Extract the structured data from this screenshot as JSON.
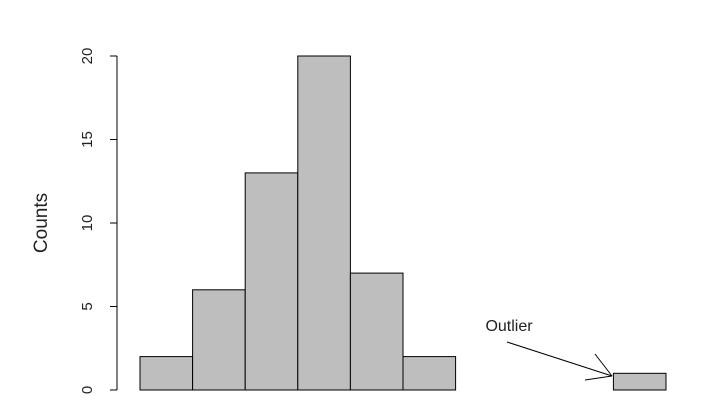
{
  "chart_data": {
    "type": "bar",
    "ylabel": "Counts",
    "ylim": [
      0,
      20
    ],
    "yticks": [
      0,
      5,
      10,
      15,
      20
    ],
    "grid": false,
    "bar_fill": "#bebebe",
    "bar_stroke": "#000000",
    "bins": [
      {
        "index": 0,
        "value": 2
      },
      {
        "index": 1,
        "value": 6
      },
      {
        "index": 2,
        "value": 13
      },
      {
        "index": 3,
        "value": 20
      },
      {
        "index": 4,
        "value": 7
      },
      {
        "index": 5,
        "value": 2
      },
      {
        "index": 6,
        "value": 0
      },
      {
        "index": 7,
        "value": 0
      },
      {
        "index": 8,
        "value": 0
      },
      {
        "index": 9,
        "value": 1
      }
    ],
    "annotations": [
      {
        "text": "Outlier",
        "points_to_bin": 9
      }
    ]
  }
}
